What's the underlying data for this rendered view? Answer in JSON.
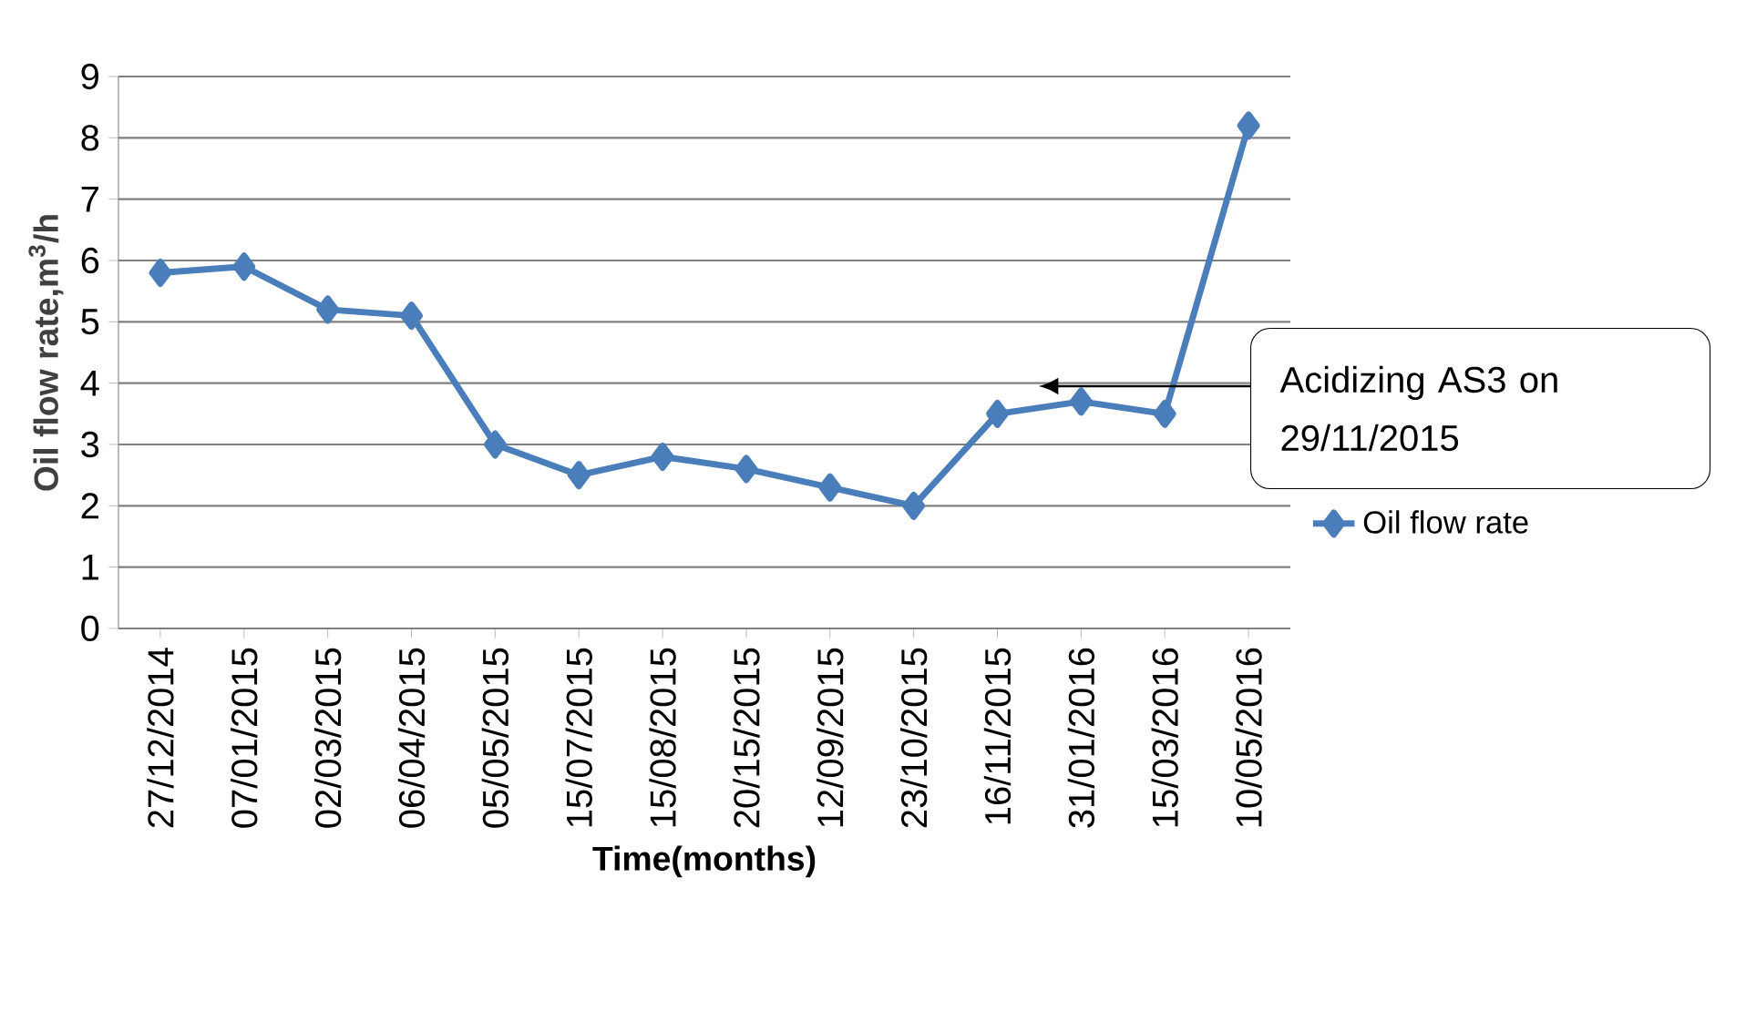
{
  "chart_data": {
    "type": "line",
    "xlabel": "Time(months)",
    "ylabel": "Oil flow rate,m$^{3}$/h",
    "categories": [
      "27/12/2014",
      "07/01/2015",
      "02/03/2015",
      "06/04/2015",
      "05/05/2015",
      "15/07/2015",
      "15/08/2015",
      "20/15/2015",
      "12/09/2015",
      "23/10/2015",
      "16/11/2015",
      "31/01/2016",
      "15/03/2016",
      "10/05/2016"
    ],
    "series": [
      {
        "name": "Oil flow rate",
        "color": "#4a7ebb",
        "values": [
          5.8,
          5.9,
          5.2,
          5.1,
          3.0,
          2.5,
          2.8,
          2.6,
          2.3,
          2.0,
          3.5,
          3.7,
          3.5,
          8.2
        ]
      }
    ],
    "ylim": [
      0,
      9
    ],
    "yticks": [
      0,
      1,
      2,
      3,
      4,
      5,
      6,
      7,
      8,
      9
    ],
    "grid": "y",
    "legend": "right",
    "marker": "diamond",
    "line_style": "solid",
    "annotations": [
      "Acidizing AS3 on 29/11/2015"
    ]
  }
}
